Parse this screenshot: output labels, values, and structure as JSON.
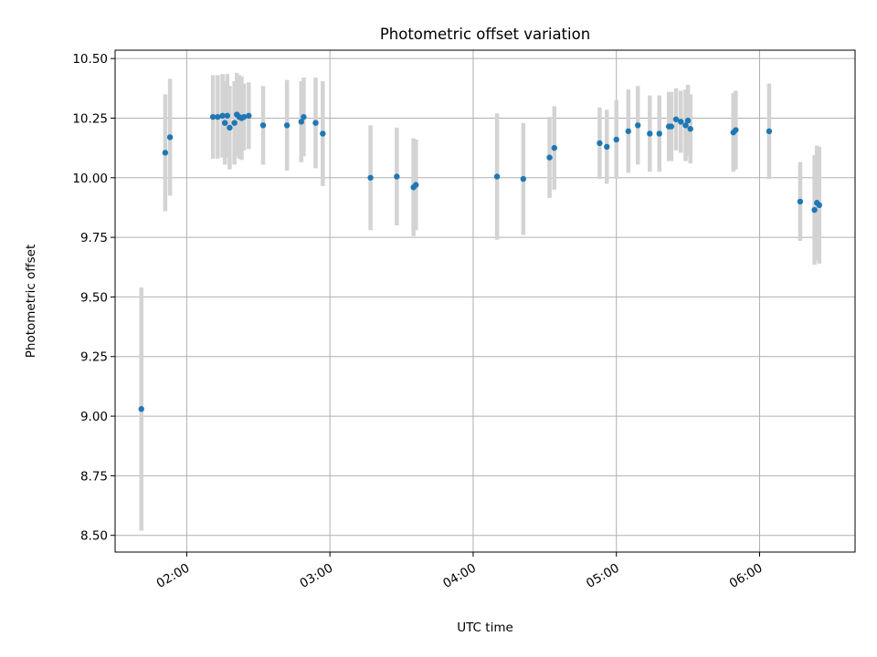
{
  "chart_data": {
    "type": "scatter",
    "title": "Photometric offset variation",
    "xlabel": "UTC time",
    "ylabel": "Photometric offset",
    "xlim": [
      "01:30",
      "06:40"
    ],
    "ylim": [
      8.43,
      10.535
    ],
    "grid": true,
    "x_ticks": [
      "02:00",
      "03:00",
      "04:00",
      "05:00",
      "06:00"
    ],
    "y_ticks": [
      "8.50",
      "8.75",
      "9.00",
      "9.25",
      "9.50",
      "9.75",
      "10.00",
      "10.25",
      "10.50"
    ],
    "colors": {
      "point": "#1f77b4",
      "errorbar": "#d3d3d3",
      "grid": "#b0b0b0"
    },
    "series": [
      {
        "x": [
          "01:41",
          "01:51",
          "01:53",
          "02:11",
          "02:13",
          "02:15",
          "02:16",
          "02:17",
          "02:18",
          "02:20",
          "02:21",
          "02:22",
          "02:23",
          "02:24",
          "02:26",
          "02:32",
          "02:42",
          "02:48",
          "02:49",
          "02:54",
          "02:57",
          "03:17",
          "03:28",
          "03:35",
          "03:36",
          "04:10",
          "04:21",
          "04:32",
          "04:34",
          "04:53",
          "04:56",
          "05:00",
          "05:05",
          "05:09",
          "05:14",
          "05:18",
          "05:22",
          "05:23",
          "05:25",
          "05:27",
          "05:29",
          "05:30",
          "05:31",
          "05:49",
          "05:50",
          "06:04",
          "06:17",
          "06:23",
          "06:24",
          "06:25"
        ],
        "y": [
          9.03,
          10.105,
          10.17,
          10.255,
          10.255,
          10.26,
          10.23,
          10.26,
          10.21,
          10.23,
          10.265,
          10.255,
          10.25,
          10.255,
          10.26,
          10.22,
          10.22,
          10.235,
          10.255,
          10.23,
          10.185,
          10.0,
          10.005,
          9.96,
          9.97,
          10.005,
          9.995,
          10.085,
          10.125,
          10.145,
          10.13,
          10.16,
          10.195,
          10.22,
          10.185,
          10.185,
          10.215,
          10.215,
          10.245,
          10.235,
          10.22,
          10.24,
          10.205,
          10.19,
          10.2,
          10.195,
          9.9,
          9.865,
          9.895,
          9.885
        ],
        "err": [
          0.51,
          0.245,
          0.245,
          0.175,
          0.175,
          0.175,
          0.175,
          0.175,
          0.175,
          0.175,
          0.175,
          0.175,
          0.175,
          0.14,
          0.14,
          0.165,
          0.19,
          0.17,
          0.165,
          0.19,
          0.22,
          0.22,
          0.205,
          0.205,
          0.19,
          0.265,
          0.235,
          0.17,
          0.175,
          0.15,
          0.155,
          0.165,
          0.175,
          0.165,
          0.16,
          0.16,
          0.145,
          0.145,
          0.13,
          0.13,
          0.15,
          0.15,
          0.145,
          0.165,
          0.165,
          0.2,
          0.165,
          0.23,
          0.24,
          0.245
        ]
      }
    ]
  }
}
